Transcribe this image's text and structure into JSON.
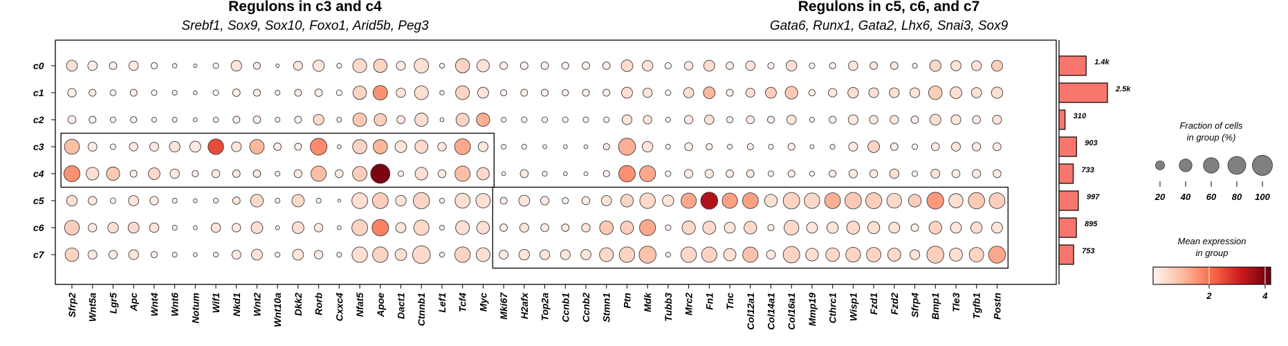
{
  "chart_data": {
    "type": "dotplot",
    "titles": [
      {
        "title": "Regulons in c3 and c4",
        "subtitle": "Srebf1, Sox9, Sox10, Foxo1, Arid5b, Peg3"
      },
      {
        "title": "Regulons in c5, c6, and c7",
        "subtitle": "Gata6, Runx1, Gata2, Lhx6, Snai3, Sox9"
      }
    ],
    "clusters": [
      "c0",
      "c1",
      "c2",
      "c3",
      "c4",
      "c5",
      "c6",
      "c7"
    ],
    "genes": [
      "Sfrp2",
      "Wnt5a",
      "Lgr5",
      "Apc",
      "Wnt4",
      "Wnt6",
      "Notum",
      "Wif1",
      "Nkd1",
      "Wnt2",
      "Wnt10a",
      "Dkk2",
      "Rorb",
      "Cxxc4",
      "Nfat5",
      "Apoe",
      "Dact1",
      "Ctnnb1",
      "Lef1",
      "Tcf4",
      "Myc",
      "Mki67",
      "H2afx",
      "Top2a",
      "Ccnb1",
      "Ccnb2",
      "Stmn1",
      "Ptn",
      "Mdk",
      "Tubb3",
      "Mrc2",
      "Fn1",
      "Tnc",
      "Col12a1",
      "Col14a1",
      "Col16a1",
      "Mmp19",
      "Cthrc1",
      "Wisp1",
      "Fzd1",
      "Fzd2",
      "Sfrp4",
      "Bmp1",
      "Tle3",
      "Tgfb1",
      "Postn"
    ],
    "fraction_pct": [
      [
        30,
        22,
        14,
        22,
        10,
        5,
        3,
        8,
        28,
        12,
        3,
        20,
        32,
        6,
        48,
        45,
        20,
        52,
        6,
        50,
        38,
        14,
        14,
        14,
        12,
        14,
        14,
        34,
        28,
        10,
        18,
        30,
        14,
        22,
        10,
        28,
        8,
        10,
        22,
        14,
        14,
        6,
        32,
        26,
        24,
        30
      ],
      [
        18,
        12,
        9,
        12,
        8,
        6,
        4,
        8,
        14,
        12,
        6,
        12,
        14,
        8,
        45,
        52,
        22,
        48,
        5,
        48,
        30,
        10,
        12,
        12,
        10,
        12,
        12,
        30,
        22,
        8,
        26,
        34,
        12,
        20,
        30,
        40,
        10,
        18,
        28,
        24,
        24,
        24,
        46,
        34,
        26,
        32
      ],
      [
        16,
        12,
        8,
        10,
        6,
        6,
        4,
        7,
        12,
        14,
        6,
        12,
        28,
        6,
        46,
        38,
        16,
        44,
        4,
        42,
        44,
        6,
        8,
        8,
        8,
        8,
        8,
        24,
        18,
        6,
        18,
        22,
        10,
        16,
        12,
        22,
        6,
        12,
        24,
        18,
        18,
        14,
        30,
        24,
        16,
        20
      ],
      [
        56,
        20,
        8,
        18,
        20,
        28,
        30,
        60,
        24,
        52,
        14,
        12,
        70,
        4,
        50,
        50,
        34,
        42,
        18,
        62,
        24,
        6,
        6,
        4,
        4,
        4,
        10,
        72,
        28,
        6,
        16,
        10,
        6,
        10,
        6,
        12,
        4,
        6,
        20,
        34,
        14,
        8,
        16,
        20,
        18,
        16
      ],
      [
        64,
        40,
        44,
        12,
        34,
        22,
        10,
        16,
        14,
        14,
        6,
        16,
        58,
        16,
        52,
        92,
        8,
        40,
        16,
        58,
        38,
        4,
        16,
        6,
        4,
        4,
        10,
        68,
        64,
        8,
        18,
        18,
        14,
        14,
        8,
        12,
        6,
        12,
        18,
        16,
        22,
        8,
        20,
        16,
        18,
        16
      ],
      [
        28,
        18,
        8,
        26,
        18,
        6,
        4,
        6,
        14,
        40,
        6,
        38,
        6,
        2,
        62,
        62,
        28,
        66,
        6,
        56,
        52,
        12,
        30,
        18,
        10,
        16,
        26,
        40,
        60,
        32,
        58,
        72,
        58,
        62,
        40,
        68,
        60,
        62,
        68,
        64,
        54,
        40,
        70,
        50,
        66,
        62
      ],
      [
        54,
        18,
        28,
        30,
        22,
        6,
        4,
        22,
        18,
        34,
        4,
        34,
        18,
        4,
        62,
        68,
        26,
        58,
        6,
        48,
        40,
        14,
        20,
        16,
        14,
        18,
        46,
        42,
        64,
        8,
        44,
        42,
        30,
        40,
        10,
        54,
        30,
        32,
        42,
        36,
        30,
        14,
        40,
        30,
        32,
        30
      ],
      [
        46,
        20,
        18,
        24,
        10,
        6,
        4,
        6,
        20,
        30,
        6,
        30,
        18,
        6,
        60,
        60,
        34,
        78,
        6,
        60,
        48,
        20,
        28,
        24,
        24,
        26,
        48,
        60,
        72,
        6,
        60,
        58,
        38,
        58,
        20,
        68,
        40,
        46,
        54,
        52,
        42,
        24,
        72,
        42,
        52,
        72
      ]
    ],
    "mean_expression": [
      [
        0.4,
        0.15,
        0.1,
        0.2,
        0.05,
        0.02,
        0.02,
        0.05,
        0.3,
        0.1,
        0.02,
        0.25,
        0.3,
        0.05,
        0.5,
        0.6,
        0.2,
        0.4,
        0.05,
        0.6,
        0.35,
        0.05,
        0.05,
        0.05,
        0.05,
        0.05,
        0.1,
        0.45,
        0.35,
        0.05,
        0.2,
        0.45,
        0.1,
        0.3,
        0.1,
        0.4,
        0.05,
        0.1,
        0.25,
        0.2,
        0.2,
        0.05,
        0.55,
        0.3,
        0.3,
        0.7
      ],
      [
        0.15,
        0.1,
        0.05,
        0.1,
        0.05,
        0.02,
        0.02,
        0.05,
        0.1,
        0.1,
        0.05,
        0.1,
        0.1,
        0.05,
        0.6,
        1.6,
        0.3,
        0.4,
        0.05,
        0.6,
        0.3,
        0.05,
        0.05,
        0.05,
        0.05,
        0.05,
        0.05,
        0.4,
        0.3,
        0.05,
        0.4,
        1.1,
        0.1,
        0.4,
        0.7,
        0.8,
        0.1,
        0.25,
        0.45,
        0.4,
        0.4,
        0.3,
        0.7,
        0.4,
        0.35,
        0.4
      ],
      [
        0.1,
        0.1,
        0.05,
        0.1,
        0.05,
        0.02,
        0.02,
        0.02,
        0.1,
        0.1,
        0.02,
        0.1,
        0.5,
        0.05,
        0.8,
        0.7,
        0.2,
        0.4,
        0.02,
        0.6,
        1.2,
        0.02,
        0.05,
        0.05,
        0.05,
        0.05,
        0.05,
        0.3,
        0.2,
        0.02,
        0.2,
        0.35,
        0.1,
        0.2,
        0.1,
        0.3,
        0.05,
        0.1,
        0.25,
        0.2,
        0.25,
        0.1,
        0.4,
        0.3,
        0.2,
        0.3
      ],
      [
        1.0,
        0.2,
        0.05,
        0.2,
        0.2,
        0.3,
        0.2,
        2.5,
        0.3,
        1.1,
        0.1,
        0.1,
        1.7,
        0.02,
        0.6,
        1.1,
        0.3,
        0.5,
        0.2,
        1.3,
        0.3,
        0.02,
        0.02,
        0.02,
        0.02,
        0.02,
        0.1,
        1.2,
        0.3,
        0.02,
        0.1,
        0.1,
        0.02,
        0.1,
        0.02,
        0.1,
        0.02,
        0.05,
        0.2,
        0.6,
        0.1,
        0.05,
        0.2,
        0.3,
        0.2,
        0.2
      ],
      [
        1.6,
        0.4,
        0.8,
        0.1,
        0.5,
        0.2,
        0.1,
        0.2,
        0.2,
        0.2,
        0.05,
        0.2,
        1.0,
        0.2,
        0.7,
        4.0,
        0.1,
        0.4,
        0.2,
        1.0,
        0.5,
        0.02,
        0.2,
        0.02,
        0.02,
        0.02,
        0.1,
        1.6,
        1.3,
        0.05,
        0.2,
        0.2,
        0.1,
        0.2,
        0.05,
        0.1,
        0.02,
        0.1,
        0.2,
        0.2,
        0.4,
        0.05,
        0.3,
        0.2,
        0.2,
        0.2
      ],
      [
        0.4,
        0.2,
        0.05,
        0.3,
        0.2,
        0.05,
        0.02,
        0.05,
        0.2,
        0.5,
        0.05,
        0.5,
        0.05,
        0.02,
        0.4,
        0.7,
        0.3,
        0.6,
        0.05,
        0.4,
        0.4,
        0.1,
        0.3,
        0.2,
        0.1,
        0.2,
        0.3,
        0.6,
        0.5,
        0.3,
        1.3,
        3.4,
        1.4,
        1.4,
        0.4,
        0.6,
        0.5,
        1.2,
        0.8,
        0.7,
        0.5,
        0.7,
        1.5,
        0.4,
        0.8,
        0.7
      ],
      [
        0.7,
        0.2,
        0.4,
        0.5,
        0.3,
        0.05,
        0.02,
        0.3,
        0.2,
        0.4,
        0.05,
        0.4,
        0.2,
        0.02,
        0.6,
        1.8,
        0.3,
        0.5,
        0.05,
        0.4,
        0.4,
        0.1,
        0.3,
        0.2,
        0.2,
        0.3,
        0.8,
        0.7,
        1.3,
        0.1,
        0.5,
        0.5,
        0.3,
        0.5,
        0.1,
        0.5,
        0.3,
        0.3,
        0.5,
        0.4,
        0.3,
        0.1,
        0.6,
        0.3,
        0.4,
        0.3
      ],
      [
        0.6,
        0.2,
        0.2,
        0.3,
        0.1,
        0.05,
        0.02,
        0.05,
        0.2,
        0.3,
        0.05,
        0.3,
        0.2,
        0.05,
        0.4,
        0.6,
        0.4,
        0.5,
        0.05,
        0.6,
        0.4,
        0.2,
        0.3,
        0.3,
        0.3,
        0.3,
        0.5,
        0.6,
        0.9,
        0.05,
        0.5,
        0.6,
        0.4,
        0.9,
        0.2,
        0.6,
        0.4,
        0.5,
        0.6,
        0.6,
        0.5,
        0.3,
        0.7,
        0.4,
        0.6,
        1.3
      ]
    ],
    "cell_counts": [
      1400,
      2500,
      310,
      903,
      733,
      997,
      895,
      753
    ],
    "cell_count_labels": [
      "1.4k",
      "2.5k",
      "310",
      "903",
      "733",
      "997",
      "895",
      "753"
    ],
    "highlight_boxes": [
      {
        "clusters": [
          "c3",
          "c4"
        ],
        "genes_from": "Sfrp2",
        "genes_to": "Myc"
      },
      {
        "clusters": [
          "c5",
          "c6",
          "c7"
        ],
        "genes_from": "Mki67",
        "genes_to": "Postn"
      }
    ],
    "size_legend": {
      "title": "Fraction of cells\nin group (%)",
      "values": [
        20,
        40,
        60,
        80,
        100
      ]
    },
    "color_legend": {
      "title": "Mean expression\nin group",
      "ticks": [
        2,
        4
      ],
      "range": [
        0,
        4.2
      ],
      "colors": [
        "#fff5f0",
        "#fcbba1",
        "#fb6a4a",
        "#cb181d",
        "#67000d"
      ]
    }
  }
}
